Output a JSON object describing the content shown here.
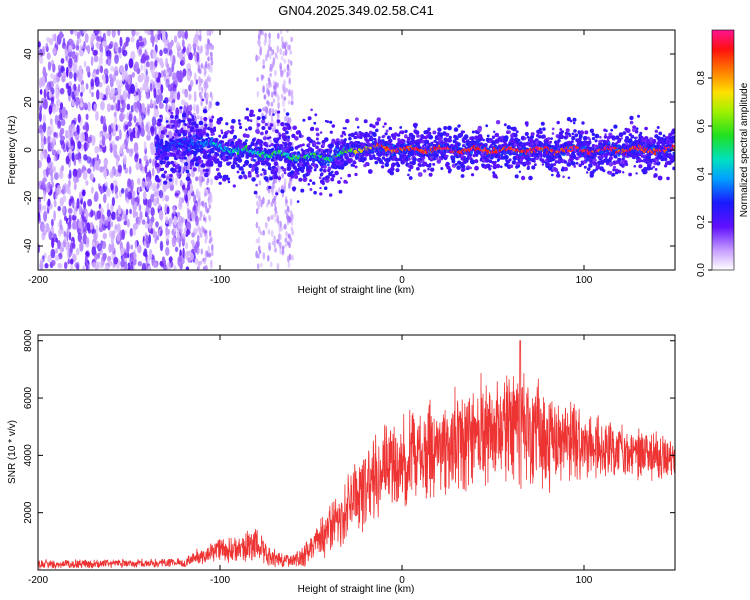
{
  "title": "GN04.2025.349.02.58.C41",
  "chart_data": [
    {
      "type": "heatmap",
      "title": "GN04.2025.349.02.58.C41",
      "xlabel": "Height of straight line (km)",
      "ylabel": "Frequency (Hz)",
      "xlim": [
        -200,
        150
      ],
      "ylim": [
        -50,
        50
      ],
      "xticks": [
        -200,
        -100,
        0,
        100
      ],
      "xtick_labels": [
        "-200",
        "-100",
        "0",
        "100"
      ],
      "yticks": [
        -40,
        -20,
        0,
        20,
        40
      ],
      "ytick_labels": [
        "-40",
        "-20",
        "0",
        "20",
        "40"
      ],
      "colorbar": {
        "label": "Normalized spectral amplitude",
        "range": [
          0,
          1
        ],
        "ticks": [
          "0.0",
          "0.2",
          "0.4",
          "0.6",
          "0.8"
        ]
      },
      "ridge": {
        "description_points_x": [
          -130,
          -110,
          -90,
          -70,
          -50,
          -40,
          -30,
          -20,
          -10,
          0,
          20,
          50,
          100,
          150
        ],
        "frequency_y": [
          2,
          3,
          0,
          -2,
          -3,
          -3,
          -1,
          1,
          1,
          0,
          0,
          0,
          0,
          0
        ],
        "amplitude": [
          0.2,
          0.3,
          0.45,
          0.5,
          0.5,
          0.45,
          0.55,
          0.75,
          0.85,
          0.9,
          0.9,
          0.9,
          0.9,
          0.9
        ]
      }
    },
    {
      "type": "line",
      "xlabel": "Height of straight line (km)",
      "ylabel": "SNR (10 * v/v)",
      "xlim": [
        -200,
        150
      ],
      "ylim": [
        0,
        8200
      ],
      "xticks": [
        -200,
        -100,
        0,
        100
      ],
      "xtick_labels": [
        "-200",
        "-100",
        "0",
        "100"
      ],
      "yticks": [
        2000,
        4000,
        6000,
        8000
      ],
      "ytick_labels": [
        "2000",
        "4000",
        "6000",
        "8000"
      ],
      "color": "#ee3333",
      "envelope": {
        "x": [
          -200,
          -120,
          -110,
          -100,
          -90,
          -80,
          -70,
          -60,
          -50,
          -40,
          -30,
          -20,
          -10,
          0,
          20,
          40,
          60,
          80,
          100,
          120,
          150
        ],
        "y": [
          200,
          250,
          500,
          700,
          800,
          900,
          400,
          300,
          700,
          1400,
          2300,
          2900,
          3500,
          3700,
          4300,
          4800,
          4900,
          4600,
          4300,
          4100,
          3900
        ],
        "spread": [
          150,
          150,
          300,
          400,
          500,
          550,
          300,
          250,
          500,
          900,
          1200,
          1400,
          1500,
          1500,
          1600,
          1800,
          1900,
          1700,
          1200,
          900,
          700
        ]
      },
      "peak": {
        "x": 65,
        "y": 8000
      }
    }
  ]
}
